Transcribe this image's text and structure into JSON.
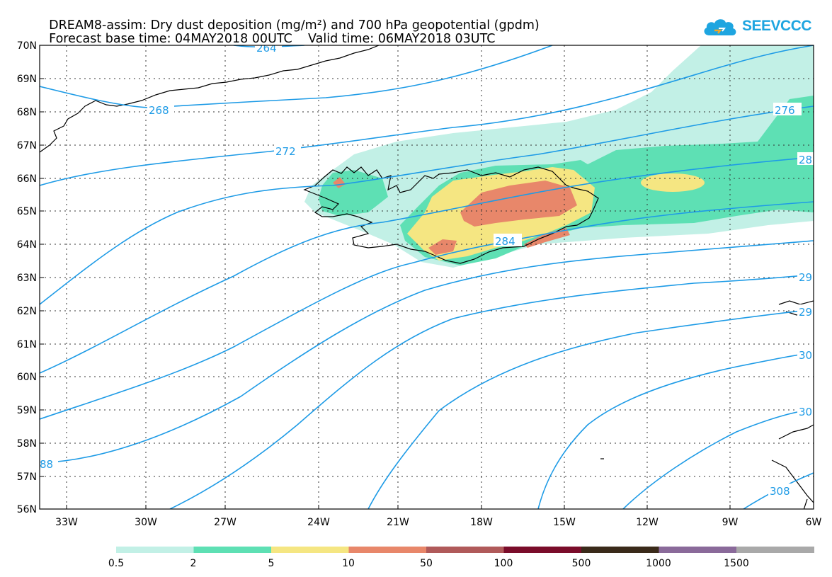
{
  "title": {
    "line1_left": "DREAM8-assim: Dry dust deposition (mg/m²) and 700 hPa geopotential (gpdm)",
    "line2_left": "Forecast base time: 04MAY2018 00UTC",
    "line2_right": "Valid time: 06MAY2018 03UTC"
  },
  "logo": {
    "text": "SEEVCCC",
    "icon": "cloud-icon",
    "color": "#1ea5e0"
  },
  "axes": {
    "lat_labels": [
      "70N",
      "69N",
      "68N",
      "67N",
      "66N",
      "65N",
      "64N",
      "63N",
      "62N",
      "61N",
      "60N",
      "59N",
      "58N",
      "57N",
      "56N"
    ],
    "lon_labels": [
      "33W",
      "30W",
      "27W",
      "24W",
      "21W",
      "18W",
      "15W",
      "12W",
      "9W",
      "6W"
    ]
  },
  "contour_labels": [
    "264",
    "268",
    "272",
    "276",
    "28",
    "284",
    "29",
    "29",
    "30",
    "30",
    "308",
    "88"
  ],
  "legend": {
    "labels": [
      "0.5",
      "2",
      "5",
      "10",
      "50",
      "100",
      "500",
      "1000",
      "1500"
    ],
    "colors": [
      "#c2f0e6",
      "#5ee0b4",
      "#f5e682",
      "#e8876a",
      "#b05a5a",
      "#7a0c2a",
      "#3a2a1a",
      "#8a6a9a",
      "#a9a9a9"
    ]
  },
  "colors": {
    "contour": "#1e9be6",
    "coast": "#000000"
  }
}
